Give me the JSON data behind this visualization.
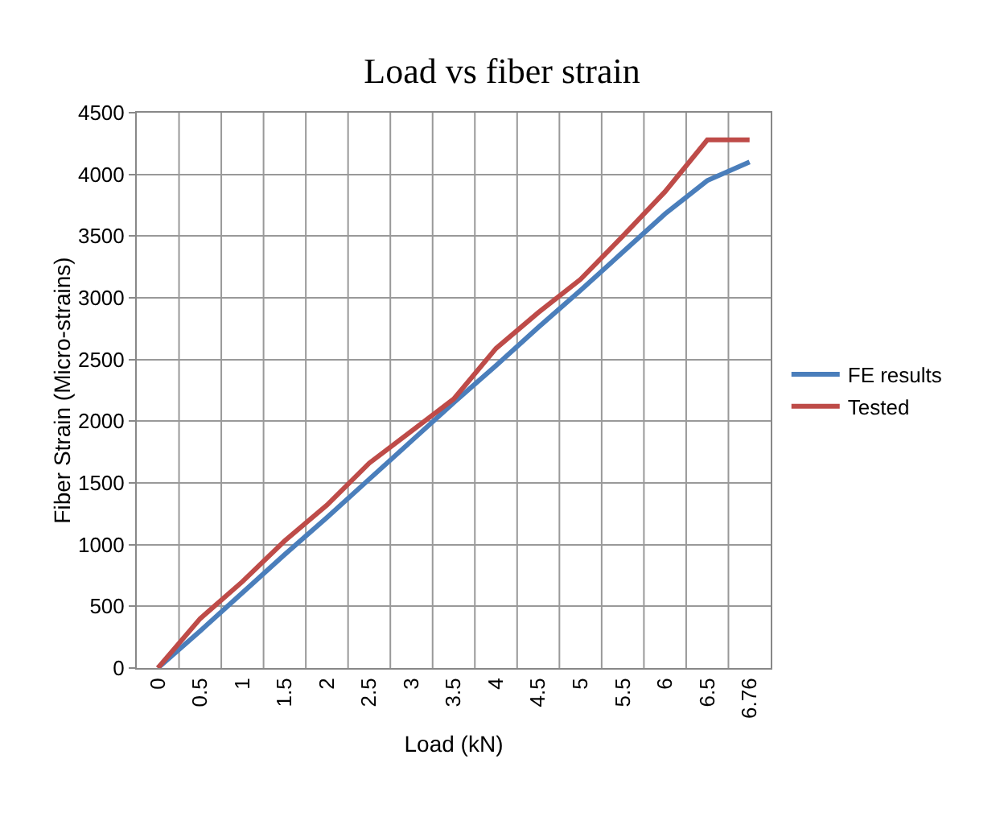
{
  "chart_data": {
    "type": "line",
    "title": "Load vs fiber strain",
    "xlabel": "Load (kN)",
    "ylabel": "Fiber Strain (Micro-strains)",
    "categories": [
      "0",
      "0.5",
      "1",
      "1.5",
      "2",
      "2.5",
      "3",
      "3.5",
      "4",
      "4.5",
      "5",
      "5.5",
      "6",
      "6.5",
      "6.76"
    ],
    "series": [
      {
        "name": "FE results",
        "color": "#4a7ebb",
        "values": [
          0,
          300,
          610,
          920,
          1220,
          1530,
          1840,
          2150,
          2450,
          2760,
          3060,
          3370,
          3680,
          3950,
          4100
        ]
      },
      {
        "name": "Tested",
        "color": "#be4b48",
        "values": [
          0,
          400,
          700,
          1030,
          1320,
          1660,
          1920,
          2180,
          2590,
          2880,
          3150,
          3500,
          3860,
          4280,
          4280
        ]
      }
    ],
    "ylim": [
      0,
      4500
    ],
    "yticks": [
      0,
      500,
      1000,
      1500,
      2000,
      2500,
      3000,
      3500,
      4000,
      4500
    ],
    "grid": true,
    "legend": "right",
    "marker": "none",
    "line_style": "solid"
  }
}
